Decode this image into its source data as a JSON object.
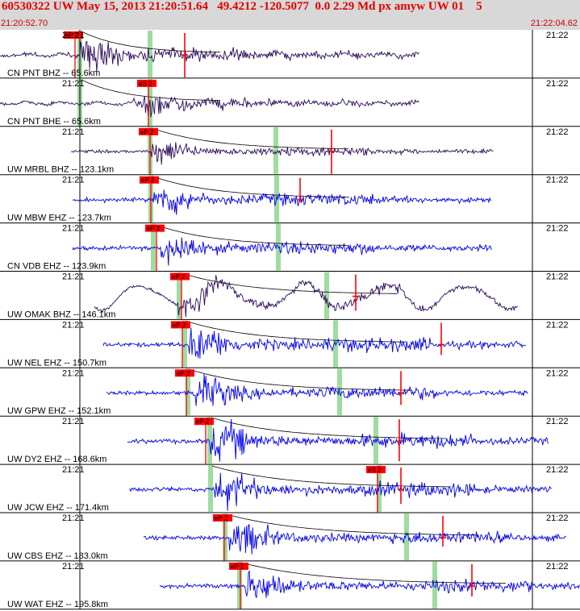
{
  "header": {
    "title": "60530322 UW May 15, 2013 21:20:51.64   49.4212 -120.5077  0.0 2.29 Md px amyw UW 01    5",
    "start_time": "21:20:52.70",
    "end_time": "21:22:04.62"
  },
  "minute_labels": {
    "left": "21:21",
    "right": "21:22"
  },
  "colors": {
    "raw_trace": "#2a0a5a",
    "filtered_trace": "#0000ee",
    "pick": "#ff0000",
    "window": "#9fdc9f",
    "text_red": "#e00000"
  },
  "traces": [
    {
      "label": "CN PNT BHZ -- 65.6km",
      "color": "raw_trace",
      "pick": "eP 2"
    },
    {
      "label": "CN PNT BHE -- 65.6km",
      "color": "raw_trace",
      "pick": "eS 2"
    },
    {
      "label": "UW MRBL BHZ -- 123.1km",
      "color": "raw_trace",
      "pick": "eP 2"
    },
    {
      "label": "UW MBW EHZ -- 123.7km",
      "color": "filtered_trace",
      "pick": "eP 2"
    },
    {
      "label": "CN VDB EHZ -- 123.9km",
      "color": "filtered_trace",
      "pick": "eP 2"
    },
    {
      "label": "UW OMAK BHZ -- 146.1km",
      "color": "raw_trace",
      "pick": "eP 2"
    },
    {
      "label": "UW NEL EHZ -- 150.7km",
      "color": "filtered_trace",
      "pick": "eP 2"
    },
    {
      "label": "UW GPW EHZ -- 152.1km",
      "color": "filtered_trace",
      "pick": "eP 2"
    },
    {
      "label": "UW DY2 EHZ -- 168.6km",
      "color": "filtered_trace",
      "pick": "eP 2"
    },
    {
      "label": "UW JCW EHZ -- 171.4km",
      "color": "filtered_trace",
      "pick": "eS 2"
    },
    {
      "label": "UW CBS EHZ -- 183.0km",
      "color": "filtered_trace",
      "pick": "eP 2"
    },
    {
      "label": "UW WAT EHZ -- 195.8km",
      "color": "filtered_trace",
      "pick": "eP 2"
    }
  ]
}
